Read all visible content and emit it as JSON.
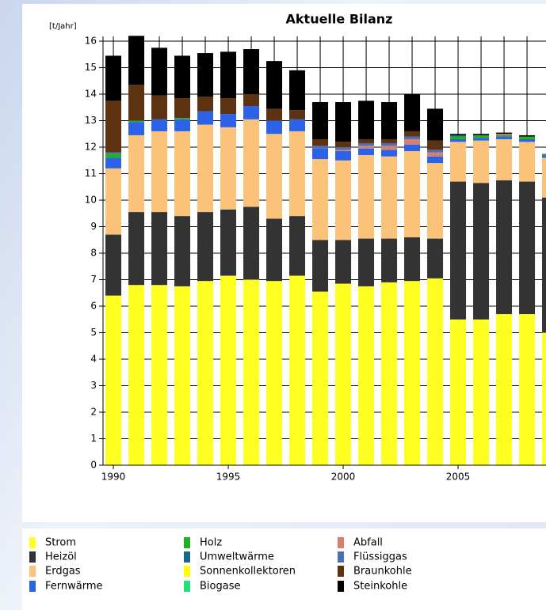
{
  "chart_data": {
    "type": "stacked_bar",
    "title": "Aktuelle Bilanz",
    "y_label": "[t/Jahr]",
    "x": [
      1990,
      1991,
      1992,
      1993,
      1994,
      1995,
      1996,
      1997,
      1998,
      1999,
      2000,
      2001,
      2002,
      2003,
      2004,
      2005,
      2006,
      2007,
      2008,
      2009
    ],
    "xlim": [
      1989.55,
      2010.5
    ],
    "xticks": [
      1990,
      1995,
      2000,
      2005
    ],
    "ylim": [
      0,
      16
    ],
    "yticks": [
      0,
      1,
      2,
      3,
      4,
      5,
      6,
      7,
      8,
      9,
      10,
      11,
      12,
      13,
      14,
      15,
      16
    ],
    "grid": true,
    "series": [
      {
        "name": "Strom",
        "color": "#ffff22",
        "values": [
          6.4,
          6.8,
          6.8,
          6.75,
          6.95,
          7.15,
          7.0,
          6.95,
          7.15,
          6.55,
          6.85,
          6.75,
          6.9,
          6.95,
          7.05,
          5.5,
          5.5,
          5.7,
          5.7,
          5.0
        ]
      },
      {
        "name": "Heizöl",
        "color": "#333333",
        "values": [
          2.3,
          2.75,
          2.75,
          2.65,
          2.6,
          2.5,
          2.75,
          2.35,
          2.25,
          1.95,
          1.65,
          1.8,
          1.65,
          1.65,
          1.5,
          5.2,
          5.15,
          5.05,
          5.0,
          5.1
        ]
      },
      {
        "name": "Erdgas",
        "color": "#fbc37a",
        "values": [
          2.5,
          2.9,
          3.05,
          3.2,
          3.3,
          3.1,
          3.3,
          3.2,
          3.2,
          3.05,
          3.0,
          3.15,
          3.1,
          3.25,
          2.85,
          1.5,
          1.6,
          1.55,
          1.5,
          1.5
        ]
      },
      {
        "name": "Fernwärme",
        "color": "#2b62e8",
        "values": [
          0.4,
          0.5,
          0.45,
          0.45,
          0.5,
          0.5,
          0.5,
          0.5,
          0.45,
          0.4,
          0.35,
          0.25,
          0.25,
          0.25,
          0.25,
          0.1,
          0.1,
          0.1,
          0.1,
          0.1
        ]
      },
      {
        "name": "Holz",
        "color": "#22b022",
        "values": [
          0.15,
          0.05,
          0,
          0.05,
          0,
          0,
          0,
          0,
          0,
          0,
          0,
          0,
          0,
          0,
          0,
          0.1,
          0.1,
          0.05,
          0.1,
          0.05
        ]
      },
      {
        "name": "Umweltwärme",
        "color": "#186a80",
        "values": [
          0,
          0,
          0,
          0,
          0,
          0,
          0,
          0,
          0,
          0,
          0,
          0,
          0,
          0,
          0,
          0.05,
          0,
          0,
          0,
          0
        ]
      },
      {
        "name": "Sonnenkollektoren",
        "color": "#ffff00",
        "values": [
          0,
          0,
          0,
          0,
          0,
          0,
          0,
          0,
          0,
          0,
          0,
          0,
          0,
          0,
          0,
          0,
          0,
          0,
          0,
          0
        ]
      },
      {
        "name": "Biogase",
        "color": "#22e07a",
        "values": [
          0,
          0,
          0,
          0,
          0,
          0,
          0,
          0,
          0,
          0,
          0,
          0,
          0,
          0,
          0,
          0,
          0,
          0,
          0,
          0
        ]
      },
      {
        "name": "Abfall",
        "color": "#d88070",
        "values": [
          0,
          0,
          0,
          0,
          0,
          0,
          0,
          0,
          0,
          0,
          0.05,
          0.1,
          0.15,
          0.2,
          0.15,
          0,
          0,
          0.05,
          0,
          0
        ]
      },
      {
        "name": "Flüssiggas",
        "color": "#4a6fb5",
        "values": [
          0.05,
          0,
          0,
          0,
          0,
          0,
          0,
          0,
          0,
          0.1,
          0.1,
          0.1,
          0.1,
          0.1,
          0.1,
          0,
          0,
          0,
          0,
          0
        ]
      },
      {
        "name": "Braunkohle",
        "color": "#5c3210",
        "values": [
          1.95,
          1.35,
          0.9,
          0.75,
          0.55,
          0.6,
          0.45,
          0.45,
          0.35,
          0.25,
          0.2,
          0.15,
          0.15,
          0.2,
          0.35,
          0,
          0,
          0,
          0,
          0
        ]
      },
      {
        "name": "Steinkohle",
        "color": "#000000",
        "values": [
          1.7,
          1.85,
          1.8,
          1.6,
          1.65,
          1.75,
          1.7,
          1.8,
          1.5,
          1.4,
          1.5,
          1.45,
          1.4,
          1.4,
          1.2,
          0.05,
          0.05,
          0.05,
          0.05,
          0
        ]
      }
    ]
  }
}
